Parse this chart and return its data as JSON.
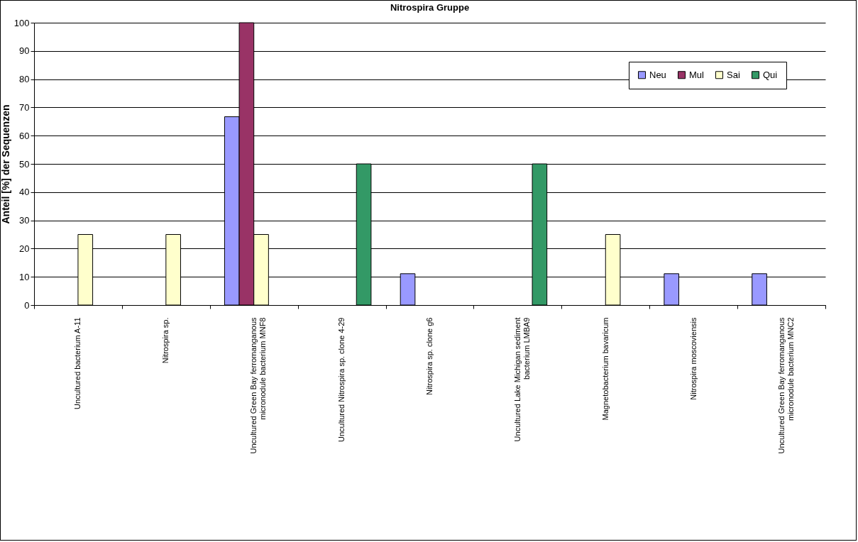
{
  "chart_data": {
    "type": "bar",
    "title": "Nitrospira Gruppe",
    "ylabel": "Anteil [%] der Sequenzen",
    "categories": [
      "Uncultured bacterium A-11",
      "Nitrospira sp.",
      "Uncultured Green Bay ferromanganous\nmicronodule bacterium MNF8",
      "Uncultured Nitrospira sp. clone 4-29",
      "Nitrospira sp. clone g6",
      "Uncultured Lake Michigan sediment\nbacterium LMBA9",
      "Magnetobacterium bavaricum",
      "Nitrospira moscoviensis",
      "Uncultured Green Bay ferromanganous\nmicronodule bacterium MNC2"
    ],
    "series": [
      {
        "name": "Neu",
        "color": "#9999ff",
        "values": [
          null,
          null,
          66.7,
          null,
          11.1,
          null,
          null,
          11.1,
          11.1
        ]
      },
      {
        "name": "Mul",
        "color": "#993366",
        "values": [
          null,
          null,
          100,
          null,
          null,
          null,
          null,
          null,
          null
        ]
      },
      {
        "name": "Sai",
        "color": "#ffffcc",
        "values": [
          25,
          25,
          25,
          null,
          null,
          null,
          25,
          null,
          null
        ]
      },
      {
        "name": "Qui",
        "color": "#339966",
        "values": [
          null,
          null,
          null,
          50,
          null,
          50,
          null,
          null,
          null
        ]
      }
    ],
    "ylim": [
      0,
      100
    ],
    "yticks": [
      0,
      10,
      20,
      30,
      40,
      50,
      60,
      70,
      80,
      90,
      100
    ],
    "grid": "y",
    "legend": "top right"
  }
}
